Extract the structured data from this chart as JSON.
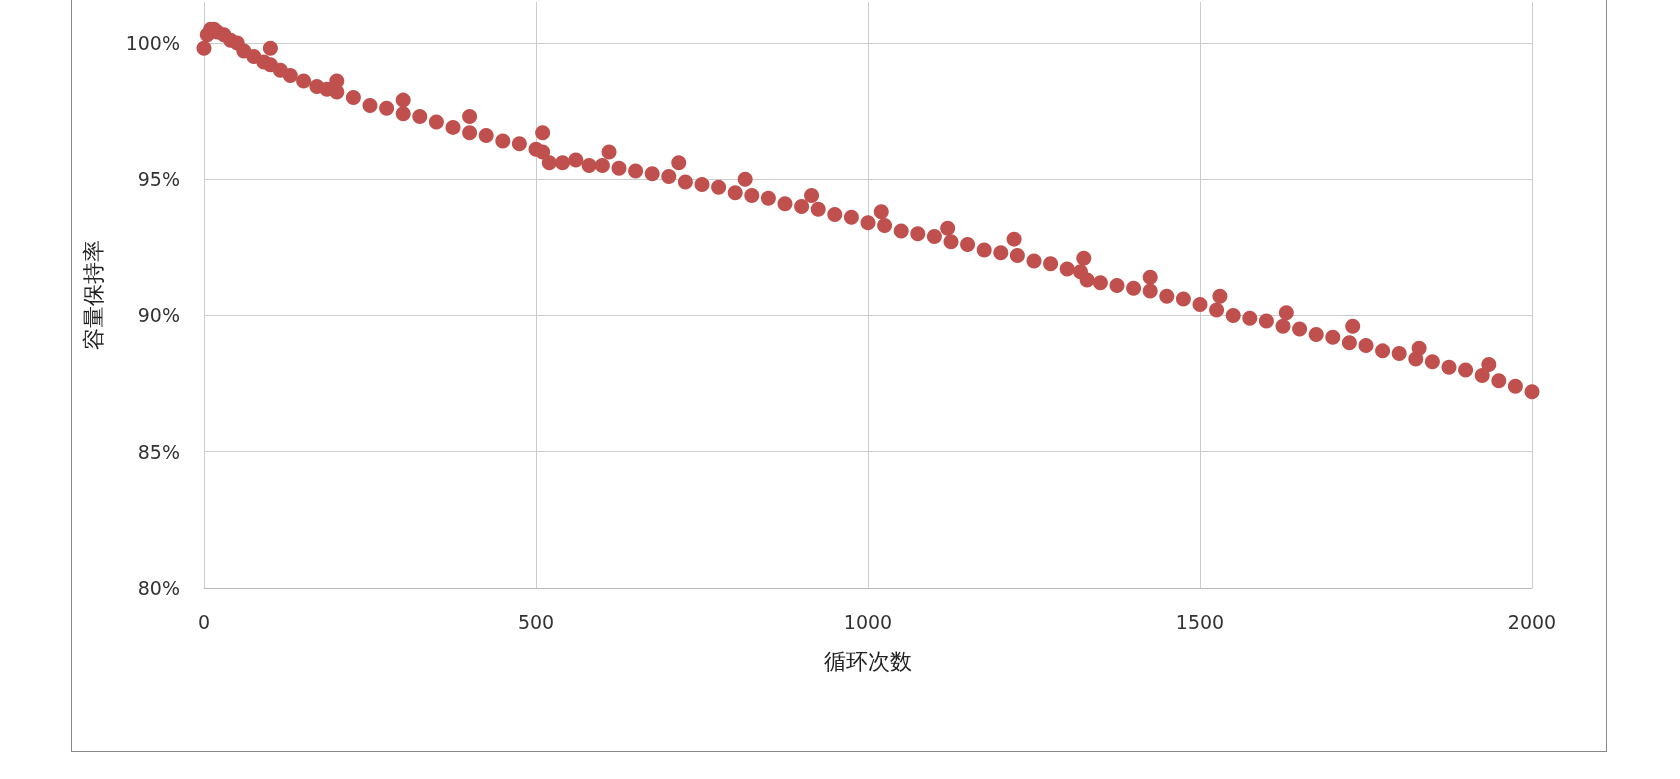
{
  "chart_data": {
    "type": "scatter",
    "xlabel": "循环次数",
    "ylabel": "容量保持率",
    "xlim": [
      0,
      2000
    ],
    "xticks": [
      0,
      500,
      1000,
      1500,
      2000
    ],
    "ylim": [
      80,
      101.5
    ],
    "yticks": [
      {
        "value": 80,
        "label": "80%"
      },
      {
        "value": 85,
        "label": "85%"
      },
      {
        "value": 90,
        "label": "90%"
      },
      {
        "value": 95,
        "label": "95%"
      },
      {
        "value": 100,
        "label": "100%"
      }
    ],
    "grid": true,
    "marker": "circle",
    "series": [
      {
        "color": "#c0504d",
        "x": [
          0,
          5,
          10,
          15,
          20,
          30,
          40,
          50,
          60,
          75,
          90,
          100,
          115,
          130,
          150,
          170,
          185,
          200,
          225,
          250,
          275,
          300,
          325,
          350,
          375,
          400,
          425,
          450,
          475,
          500,
          510,
          520,
          540,
          560,
          580,
          600,
          625,
          650,
          675,
          700,
          725,
          750,
          775,
          800,
          825,
          850,
          875,
          900,
          925,
          950,
          975,
          1000,
          1025,
          1050,
          1075,
          1100,
          1125,
          1150,
          1175,
          1200,
          1225,
          1250,
          1275,
          1300,
          1320,
          1330,
          1350,
          1375,
          1400,
          1425,
          1450,
          1475,
          1500,
          1525,
          1550,
          1575,
          1600,
          1625,
          1650,
          1675,
          1700,
          1725,
          1750,
          1775,
          1800,
          1825,
          1850,
          1875,
          1900,
          1925,
          1950,
          1975,
          2000,
          100,
          200,
          300,
          400,
          510,
          610,
          715,
          815,
          915,
          1020,
          1120,
          1220,
          1325,
          1425,
          1530,
          1630,
          1730,
          1830,
          1935
        ],
        "values": [
          99.8,
          100.3,
          100.5,
          100.5,
          100.4,
          100.3,
          100.1,
          100,
          99.7,
          99.5,
          99.3,
          99.2,
          99,
          98.8,
          98.6,
          98.4,
          98.3,
          98.2,
          98,
          97.7,
          97.6,
          97.4,
          97.3,
          97.1,
          96.9,
          96.7,
          96.6,
          96.4,
          96.3,
          96.1,
          96,
          95.6,
          95.6,
          95.7,
          95.5,
          95.5,
          95.4,
          95.3,
          95.2,
          95.1,
          94.9,
          94.8,
          94.7,
          94.5,
          94.4,
          94.3,
          94.1,
          94,
          93.9,
          93.7,
          93.6,
          93.4,
          93.3,
          93.1,
          93,
          92.9,
          92.7,
          92.6,
          92.4,
          92.3,
          92.2,
          92,
          91.9,
          91.7,
          91.6,
          91.3,
          91.2,
          91.1,
          91,
          90.9,
          90.7,
          90.6,
          90.4,
          90.2,
          90,
          89.9,
          89.8,
          89.6,
          89.5,
          89.3,
          89.2,
          89,
          88.9,
          88.7,
          88.6,
          88.4,
          88.3,
          88.1,
          88,
          87.8,
          87.6,
          87.4,
          87.2,
          99.8,
          98.6,
          97.9,
          97.3,
          96.7,
          96,
          95.6,
          95,
          94.4,
          93.8,
          93.2,
          92.8,
          92.1,
          91.4,
          90.7,
          90.1,
          89.6,
          88.8,
          88.2
        ]
      }
    ]
  }
}
